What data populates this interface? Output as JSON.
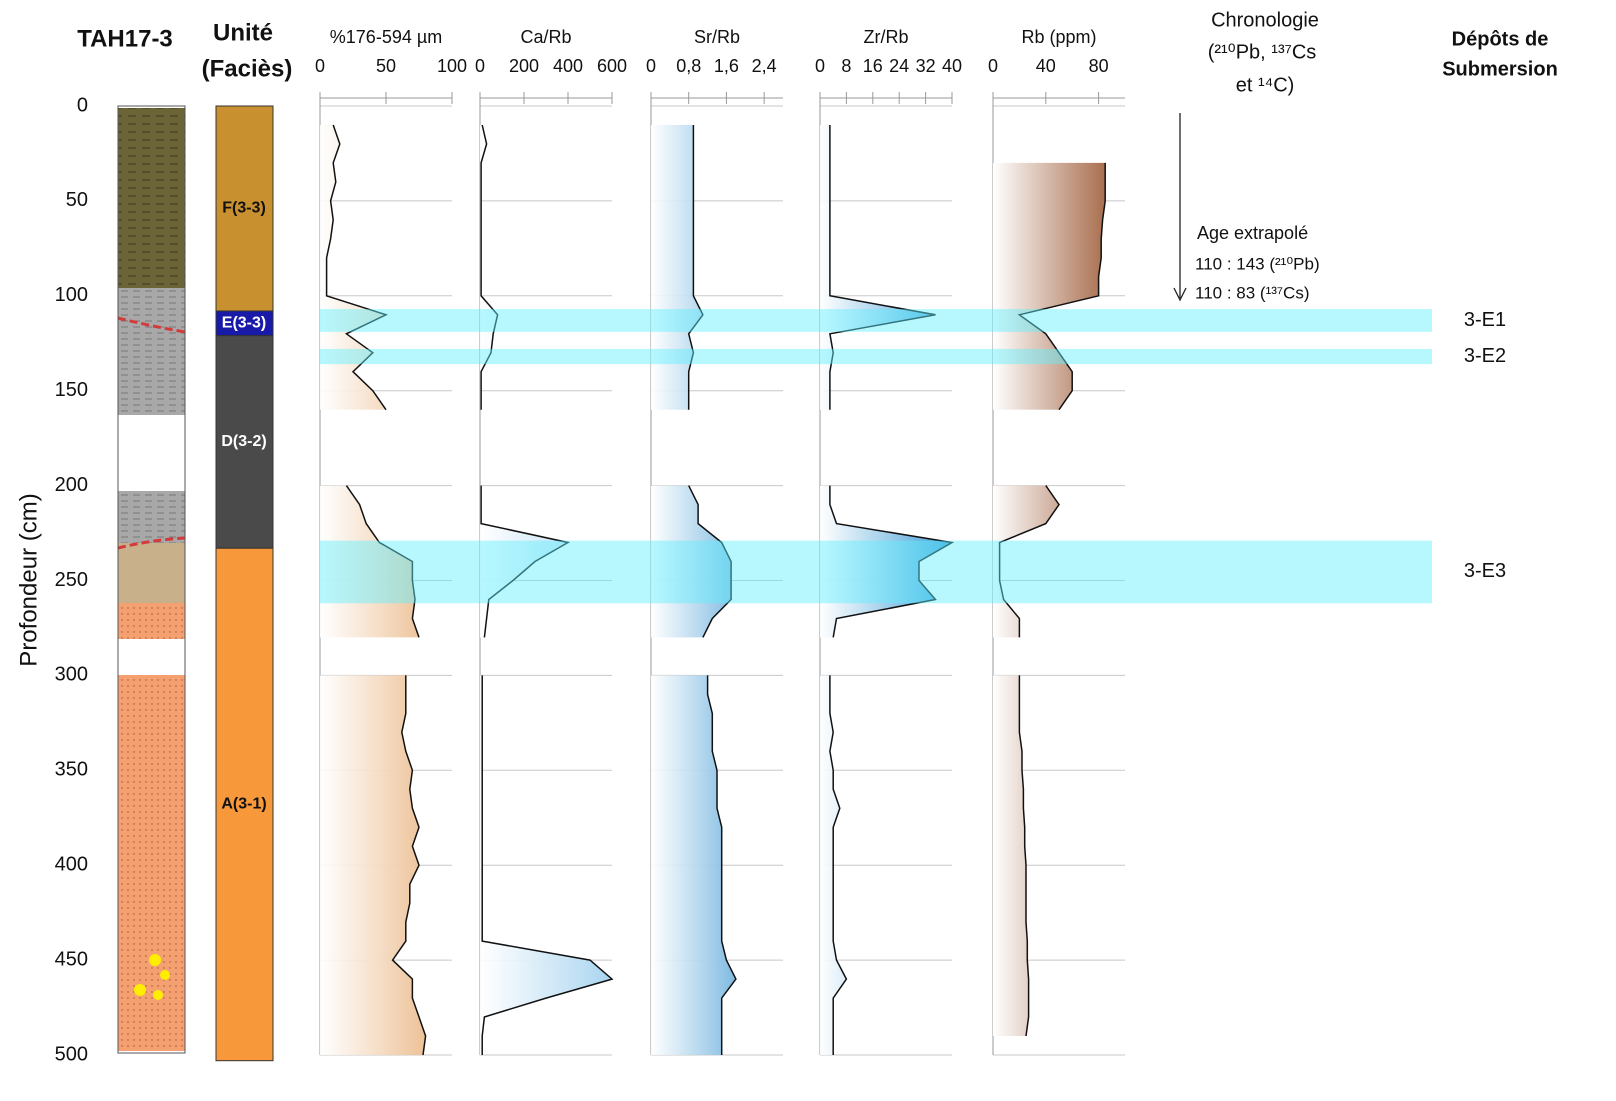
{
  "core_title": "TAH17-3",
  "depth_axis": {
    "label": "Profondeur (cm)",
    "ylim": [
      0,
      500
    ],
    "yticks": [
      0,
      50,
      100,
      150,
      200,
      250,
      300,
      350,
      400,
      450,
      500
    ]
  },
  "units": {
    "title": [
      "Unité",
      "(Faciès)"
    ],
    "segments": [
      {
        "label": "F(3-3)",
        "top": 0,
        "bottom": 108,
        "color": "#c8902e"
      },
      {
        "label": "E(3-3)",
        "top": 108,
        "bottom": 121,
        "color": "#1a1aa8"
      },
      {
        "label": "D(3-2)",
        "top": 121,
        "bottom": 233,
        "color": "#4a4a4a"
      },
      {
        "label": "A(3-1)",
        "top": 233,
        "bottom": 503,
        "color": "#f7993a"
      }
    ]
  },
  "chart_data": [
    {
      "type": "area",
      "title": "%176-594 µm",
      "color": "#e8b07a",
      "xlim": [
        0,
        100
      ],
      "xticks": [
        0,
        50,
        100
      ],
      "depth": [
        10,
        20,
        30,
        40,
        50,
        60,
        70,
        80,
        90,
        100,
        110,
        120,
        130,
        140,
        150,
        160,
        170,
        180,
        190,
        200,
        210,
        220,
        230,
        240,
        250,
        260,
        270,
        280,
        290,
        300,
        310,
        320,
        330,
        340,
        350,
        360,
        370,
        380,
        390,
        400,
        410,
        420,
        430,
        440,
        450,
        460,
        470,
        480,
        490,
        500
      ],
      "values": [
        10,
        15,
        10,
        12,
        8,
        10,
        8,
        5,
        5,
        5,
        50,
        20,
        40,
        25,
        40,
        50,
        null,
        null,
        null,
        20,
        30,
        35,
        45,
        70,
        70,
        72,
        70,
        75,
        null,
        65,
        65,
        65,
        62,
        65,
        70,
        68,
        70,
        75,
        70,
        75,
        68,
        68,
        65,
        65,
        55,
        70,
        70,
        75,
        80,
        78
      ]
    },
    {
      "type": "area",
      "title": "Ca/Rb",
      "color": "#a9d4f0",
      "xlim": [
        0,
        600
      ],
      "xticks": [
        0,
        200,
        400,
        600
      ],
      "depth": [
        10,
        20,
        30,
        40,
        50,
        60,
        70,
        80,
        90,
        100,
        110,
        120,
        130,
        140,
        150,
        160,
        170,
        180,
        190,
        200,
        210,
        220,
        230,
        240,
        250,
        260,
        270,
        280,
        290,
        300,
        310,
        320,
        330,
        340,
        350,
        360,
        370,
        380,
        390,
        400,
        410,
        420,
        430,
        440,
        450,
        460,
        470,
        480,
        490,
        500
      ],
      "values": [
        10,
        30,
        5,
        5,
        5,
        5,
        5,
        5,
        5,
        5,
        80,
        60,
        50,
        5,
        5,
        5,
        null,
        null,
        null,
        5,
        5,
        5,
        400,
        250,
        150,
        40,
        30,
        20,
        null,
        10,
        10,
        10,
        10,
        10,
        10,
        10,
        10,
        10,
        10,
        10,
        10,
        10,
        10,
        10,
        500,
        600,
        300,
        20,
        10,
        10
      ]
    },
    {
      "type": "area",
      "title": "Sr/Rb",
      "color": "#2f8fcf",
      "xlim": [
        0,
        2.8
      ],
      "xticks": [
        0,
        {
          "value": 0.8,
          "label": "0,8"
        },
        {
          "value": 1.6,
          "label": "1,6"
        },
        {
          "value": 2.4,
          "label": "2,4"
        }
      ],
      "depth": [
        10,
        20,
        30,
        40,
        50,
        60,
        70,
        80,
        90,
        100,
        110,
        120,
        130,
        140,
        150,
        160,
        170,
        180,
        190,
        200,
        210,
        220,
        230,
        240,
        250,
        260,
        270,
        280,
        290,
        300,
        310,
        320,
        330,
        340,
        350,
        360,
        370,
        380,
        390,
        400,
        410,
        420,
        430,
        440,
        450,
        460,
        470,
        480,
        490,
        500
      ],
      "values": [
        0.9,
        0.9,
        0.9,
        0.9,
        0.9,
        0.9,
        0.9,
        0.9,
        0.9,
        0.9,
        1.1,
        0.8,
        0.9,
        0.8,
        0.8,
        0.8,
        null,
        null,
        null,
        0.8,
        1.0,
        1.0,
        1.5,
        1.7,
        1.7,
        1.7,
        1.3,
        1.1,
        null,
        1.2,
        1.2,
        1.3,
        1.3,
        1.3,
        1.4,
        1.4,
        1.4,
        1.5,
        1.5,
        1.5,
        1.5,
        1.5,
        1.5,
        1.5,
        1.6,
        1.8,
        1.5,
        1.5,
        1.5,
        1.5
      ]
    },
    {
      "type": "area",
      "title": "Zr/Rb",
      "color": "#3a9ad6",
      "xlim": [
        0,
        40
      ],
      "xticks": [
        0,
        8,
        16,
        24,
        32,
        40
      ],
      "depth": [
        10,
        20,
        30,
        40,
        50,
        60,
        70,
        80,
        90,
        100,
        110,
        120,
        130,
        140,
        150,
        160,
        170,
        180,
        190,
        200,
        210,
        220,
        230,
        240,
        250,
        260,
        270,
        280,
        290,
        300,
        310,
        320,
        330,
        340,
        350,
        360,
        370,
        380,
        390,
        400,
        410,
        420,
        430,
        440,
        450,
        460,
        470,
        480,
        490,
        500
      ],
      "values": [
        3,
        3,
        3,
        3,
        3,
        3,
        3,
        3,
        3,
        3,
        35,
        3,
        4,
        3,
        3,
        3,
        null,
        null,
        null,
        3,
        3,
        5,
        40,
        30,
        30,
        35,
        5,
        4,
        null,
        3,
        3,
        3,
        4,
        3,
        4,
        4,
        6,
        4,
        4,
        4,
        4,
        4,
        4,
        4,
        5,
        8,
        4,
        4,
        4,
        4
      ]
    },
    {
      "type": "area",
      "title": "Rb (ppm)",
      "color": "#9a5530",
      "xlim": [
        0,
        100
      ],
      "xticks": [
        0,
        40,
        80
      ],
      "depth": [
        10,
        20,
        30,
        40,
        50,
        60,
        70,
        80,
        90,
        100,
        110,
        120,
        130,
        140,
        150,
        160,
        170,
        180,
        190,
        200,
        210,
        220,
        230,
        240,
        250,
        260,
        270,
        280,
        290,
        300,
        310,
        320,
        330,
        340,
        350,
        360,
        370,
        380,
        390,
        400,
        410,
        420,
        430,
        440,
        450,
        460,
        470,
        480,
        490,
        500
      ],
      "values": [
        85,
        null,
        85,
        85,
        85,
        83,
        82,
        82,
        80,
        80,
        20,
        40,
        50,
        60,
        60,
        50,
        null,
        null,
        null,
        40,
        50,
        40,
        5,
        5,
        5,
        8,
        20,
        20,
        null,
        20,
        20,
        20,
        20,
        22,
        22,
        23,
        23,
        24,
        24,
        25,
        25,
        25,
        25,
        26,
        26,
        27,
        27,
        27,
        25,
        null
      ]
    }
  ],
  "chronology": {
    "title": [
      "Chronologie",
      "(²¹⁰Pb, ¹³⁷Cs",
      "et ¹⁴C)"
    ],
    "note": "Age extrapolé",
    "ages": [
      "110 : 143 (²¹⁰Pb)",
      "110 : 83 (¹³⁷Cs)"
    ]
  },
  "events": {
    "title": [
      "Dépôts de",
      "Submersion"
    ],
    "color": "#5ff0ff",
    "items": [
      {
        "label": "3-E1",
        "top": 107,
        "bottom": 119
      },
      {
        "label": "3-E2",
        "top": 128,
        "bottom": 136
      },
      {
        "label": "3-E3",
        "top": 229,
        "bottom": 262
      }
    ]
  }
}
